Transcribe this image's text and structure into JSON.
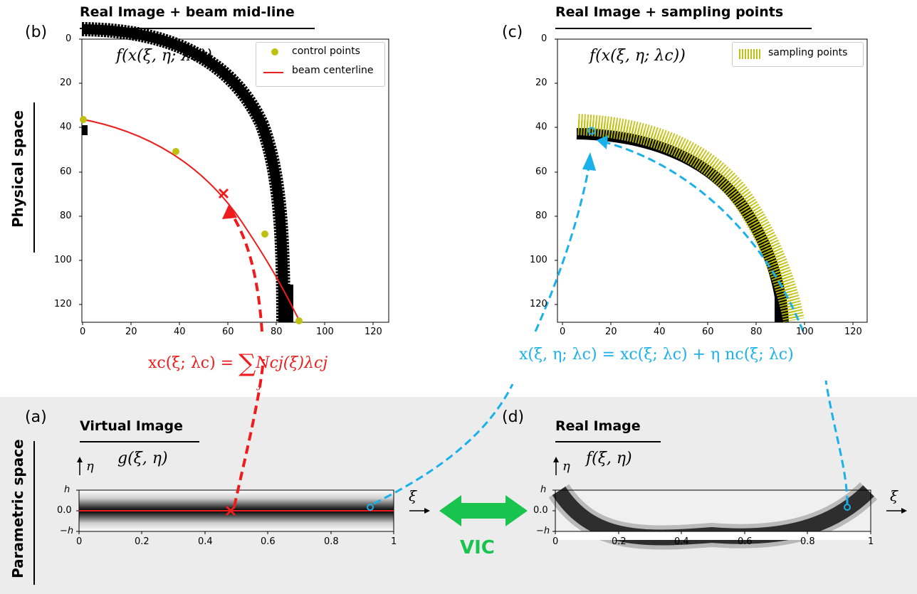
{
  "panels": {
    "b": {
      "tag": "(b)",
      "title": "Real Image + beam mid-line",
      "formula": "f(x(ξ, η; λc))",
      "legend": [
        "control points",
        "beam centerline"
      ],
      "x_ticks": [
        "0",
        "20",
        "40",
        "60",
        "80",
        "100",
        "120"
      ],
      "y_ticks": [
        "0",
        "20",
        "40",
        "60",
        "80",
        "100",
        "120"
      ]
    },
    "c": {
      "tag": "(c)",
      "title": "Real Image + sampling points",
      "formula": "f(x(ξ, η; λc))",
      "legend": [
        "sampling points"
      ],
      "x_ticks": [
        "0",
        "20",
        "40",
        "60",
        "80",
        "100",
        "120"
      ],
      "y_ticks": [
        "0",
        "20",
        "40",
        "60",
        "80",
        "100",
        "120"
      ]
    },
    "a": {
      "tag": "(a)",
      "title": "Virtual Image",
      "formula": "g(ξ, η)",
      "eta": "η",
      "xi": "ξ",
      "y_ticks": [
        "h",
        "0.0",
        "−h"
      ],
      "x_ticks": [
        "0",
        "0.2",
        "0.4",
        "0.6",
        "0.8",
        "1"
      ]
    },
    "d": {
      "tag": "(d)",
      "title": "Real Image",
      "formula": "f(ξ, η)",
      "eta": "η",
      "xi": "ξ",
      "y_ticks": [
        "h",
        "0.0",
        "−h"
      ],
      "x_ticks": [
        "0",
        "0.2",
        "0.4",
        "0.6",
        "0.8",
        "1"
      ]
    }
  },
  "equations": {
    "red": "x_c(ξ; λ_c) = Σ_j N^c_j(ξ) λ_{c_j}",
    "red_main": "xc(ξ; λc) = ",
    "red_sum": "∑",
    "red_sub": "j",
    "red_tail": "Ncj(ξ)λcj",
    "blue": "x(ξ, η; λc) = xc(ξ; λc) + η nc(ξ; λc)"
  },
  "side_labels": {
    "physical": "Physical space",
    "parametric": "Parametric space"
  },
  "vic": "VIC",
  "colors": {
    "red": "#ee1c1c",
    "blue": "#1ab0ea",
    "green": "#18c44e",
    "olive": "#c0c010",
    "gray_band": "#ececec"
  }
}
